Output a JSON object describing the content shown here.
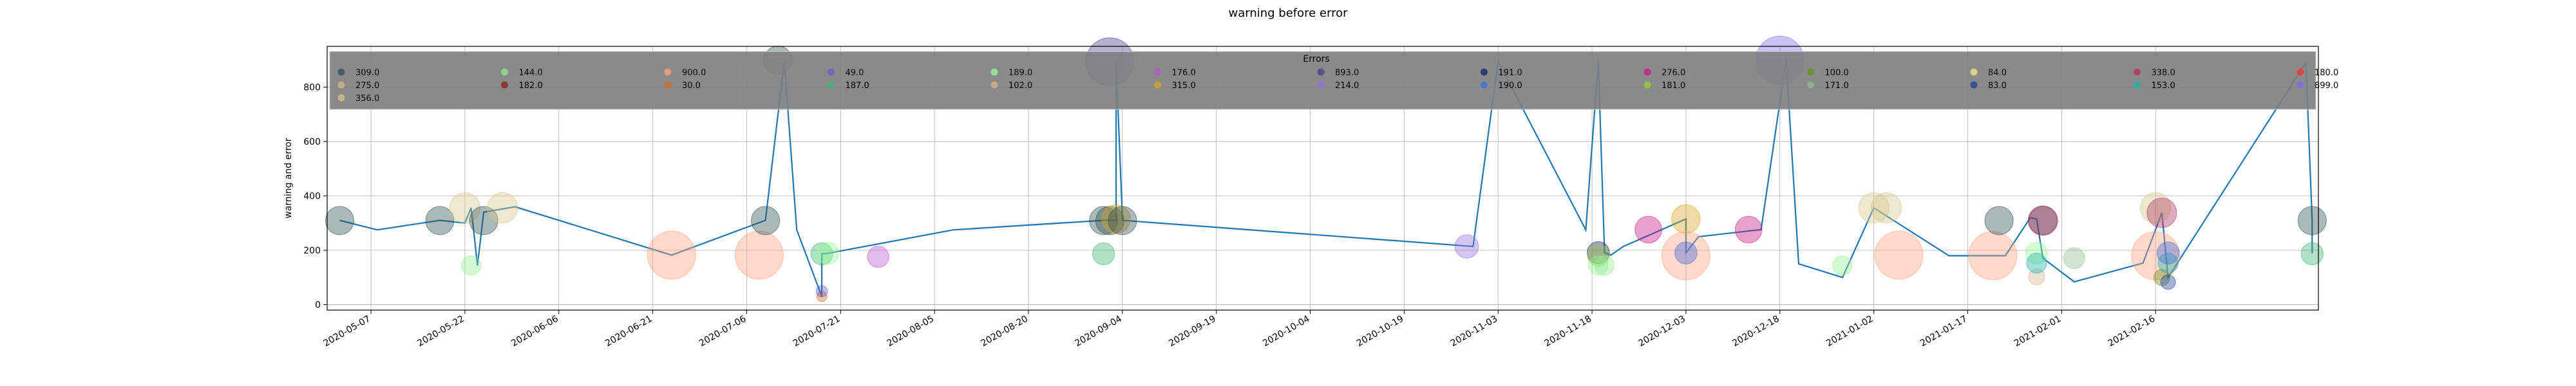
{
  "chart_data": {
    "type": "scatter",
    "title": "warning before error",
    "xlabel": "",
    "ylabel": "warning and error",
    "ylim": [
      -20,
      950
    ],
    "xlim": [
      "2020-04-30",
      "2021-03-14"
    ],
    "grid": true,
    "yticks": [
      0,
      200,
      400,
      600,
      800
    ],
    "xticks": [
      "2020-05-07",
      "2020-05-22",
      "2020-06-06",
      "2020-06-21",
      "2020-07-06",
      "2020-07-21",
      "2020-08-05",
      "2020-08-20",
      "2020-09-04",
      "2020-09-19",
      "2020-10-04",
      "2020-10-19",
      "2020-11-03",
      "2020-11-18",
      "2020-12-03",
      "2020-12-18",
      "2021-01-02",
      "2021-01-17",
      "2021-02-01",
      "2021-02-16"
    ],
    "legend": {
      "title": "Errors",
      "placement": "top",
      "entries": [
        {
          "label": "309.0",
          "color": "#2f4f4f"
        },
        {
          "label": "275.0",
          "color": "#cdb88a"
        },
        {
          "label": "356.0",
          "color": "#d4c58a"
        },
        {
          "label": "144.0",
          "color": "#90ee90"
        },
        {
          "label": "182.0",
          "color": "#8b1a1a"
        },
        {
          "label": "900.0",
          "color": "#ffa07a"
        },
        {
          "label": "30.0",
          "color": "#d2691e"
        },
        {
          "label": "49.0",
          "color": "#6a5acd"
        },
        {
          "label": "187.0",
          "color": "#3cb371"
        },
        {
          "label": "189.0",
          "color": "#98fb98"
        },
        {
          "label": "102.0",
          "color": "#d2b48c"
        },
        {
          "label": "176.0",
          "color": "#ba55d3"
        },
        {
          "label": "315.0",
          "color": "#daa520"
        },
        {
          "label": "893.0",
          "color": "#483d8b"
        },
        {
          "label": "214.0",
          "color": "#9370db"
        },
        {
          "label": "191.0",
          "color": "#191970"
        },
        {
          "label": "190.0",
          "color": "#4169e1"
        },
        {
          "label": "276.0",
          "color": "#c71585"
        },
        {
          "label": "181.0",
          "color": "#9acd32"
        },
        {
          "label": "100.0",
          "color": "#6b8e23"
        },
        {
          "label": "171.0",
          "color": "#8fbc8f"
        },
        {
          "label": "84.0",
          "color": "#f0e68c"
        },
        {
          "label": "83.0",
          "color": "#1e3c96"
        },
        {
          "label": "338.0",
          "color": "#b03060"
        },
        {
          "label": "153.0",
          "color": "#20b2aa"
        },
        {
          "label": "180.0",
          "color": "#ff3030"
        },
        {
          "label": "899.0",
          "color": "#7b68ee"
        }
      ]
    },
    "line": {
      "color": "#1f77b4",
      "x": [
        "2020-05-02",
        "2020-05-08",
        "2020-05-18",
        "2020-05-22",
        "2020-05-23",
        "2020-05-24",
        "2020-05-25",
        "2020-05-30",
        "2020-06-24",
        "2020-07-09",
        "2020-07-12",
        "2020-07-14",
        "2020-07-18",
        "2020-07-18",
        "2020-07-19",
        "2020-08-08",
        "2020-09-01",
        "2020-09-03",
        "2020-09-03",
        "2020-09-04",
        "2020-09-04",
        "2020-10-30",
        "2020-11-03",
        "2020-11-17",
        "2020-11-19",
        "2020-11-20",
        "2020-11-21",
        "2020-11-23",
        "2020-12-03",
        "2020-12-03",
        "2020-12-05",
        "2020-12-15",
        "2020-12-19",
        "2020-12-21",
        "2020-12-28",
        "2021-01-02",
        "2021-01-14",
        "2021-01-23",
        "2021-01-27",
        "2021-01-28",
        "2021-01-29",
        "2021-02-03",
        "2021-02-14",
        "2021-02-17",
        "2021-02-18",
        "2021-03-12",
        "2021-03-13",
        "2021-03-13"
      ],
      "y": [
        310,
        275,
        310,
        300,
        356,
        144,
        340,
        360,
        182,
        310,
        895,
        275,
        30,
        187,
        189,
        275,
        310,
        310,
        893,
        315,
        310,
        214,
        895,
        275,
        895,
        191,
        182,
        214,
        315,
        190,
        250,
        276,
        900,
        150,
        100,
        356,
        180,
        180,
        320,
        315,
        171,
        84,
        153,
        338,
        100,
        890,
        310,
        189
      ]
    },
    "points": [
      {
        "x": "2020-05-02",
        "y": 309,
        "error": 309.0
      },
      {
        "x": "2020-05-18",
        "y": 309,
        "error": 309.0
      },
      {
        "x": "2020-05-22",
        "y": 356,
        "error": 356.0
      },
      {
        "x": "2020-05-23",
        "y": 144,
        "error": 144.0
      },
      {
        "x": "2020-05-25",
        "y": 309,
        "error": 309.0
      },
      {
        "x": "2020-05-28",
        "y": 356,
        "error": 356.0
      },
      {
        "x": "2020-06-24",
        "y": 182,
        "error": 900.0
      },
      {
        "x": "2020-07-08",
        "y": 182,
        "error": 900.0
      },
      {
        "x": "2020-07-09",
        "y": 309,
        "error": 309.0
      },
      {
        "x": "2020-07-11",
        "y": 899,
        "error": 309.0
      },
      {
        "x": "2020-07-18",
        "y": 30,
        "error": 30.0
      },
      {
        "x": "2020-07-18",
        "y": 49,
        "error": 49.0
      },
      {
        "x": "2020-07-18",
        "y": 187,
        "error": 187.0
      },
      {
        "x": "2020-07-19",
        "y": 189,
        "error": 189.0
      },
      {
        "x": "2020-07-27",
        "y": 176,
        "error": 176.0
      },
      {
        "x": "2020-09-01",
        "y": 309,
        "error": 309.0
      },
      {
        "x": "2020-09-01",
        "y": 187,
        "error": 187.0
      },
      {
        "x": "2020-09-02",
        "y": 893,
        "error": 893.0
      },
      {
        "x": "2020-09-02",
        "y": 309,
        "error": 309.0
      },
      {
        "x": "2020-09-03",
        "y": 315,
        "error": 315.0
      },
      {
        "x": "2020-09-04",
        "y": 309,
        "error": 309.0
      },
      {
        "x": "2020-10-29",
        "y": 214,
        "error": 214.0
      },
      {
        "x": "2020-11-19",
        "y": 191,
        "error": 191.0
      },
      {
        "x": "2020-11-19",
        "y": 181,
        "error": 181.0
      },
      {
        "x": "2020-11-19",
        "y": 144,
        "error": 144.0
      },
      {
        "x": "2020-11-20",
        "y": 144,
        "error": 144.0
      },
      {
        "x": "2020-11-27",
        "y": 276,
        "error": 276.0
      },
      {
        "x": "2020-12-03",
        "y": 315,
        "error": 315.0
      },
      {
        "x": "2020-12-03",
        "y": 180,
        "error": 900.0
      },
      {
        "x": "2020-12-03",
        "y": 190,
        "error": 190.0
      },
      {
        "x": "2020-12-13",
        "y": 276,
        "error": 276.0
      },
      {
        "x": "2020-12-18",
        "y": 899,
        "error": 899.0
      },
      {
        "x": "2020-12-28",
        "y": 144,
        "error": 144.0
      },
      {
        "x": "2021-01-02",
        "y": 356,
        "error": 356.0
      },
      {
        "x": "2021-01-04",
        "y": 356,
        "error": 356.0
      },
      {
        "x": "2021-01-06",
        "y": 182,
        "error": 900.0
      },
      {
        "x": "2021-01-21",
        "y": 180,
        "error": 900.0
      },
      {
        "x": "2021-01-22",
        "y": 309,
        "error": 309.0
      },
      {
        "x": "2021-01-28",
        "y": 102,
        "error": 102.0
      },
      {
        "x": "2021-01-28",
        "y": 189,
        "error": 189.0
      },
      {
        "x": "2021-01-28",
        "y": 153,
        "error": 153.0
      },
      {
        "x": "2021-01-29",
        "y": 309,
        "error": 309.0
      },
      {
        "x": "2021-01-29",
        "y": 309,
        "error": 338.0
      },
      {
        "x": "2021-02-03",
        "y": 171,
        "error": 171.0
      },
      {
        "x": "2021-02-16",
        "y": 180,
        "error": 900.0
      },
      {
        "x": "2021-02-16",
        "y": 356,
        "error": 356.0
      },
      {
        "x": "2021-02-17",
        "y": 338,
        "error": 338.0
      },
      {
        "x": "2021-02-17",
        "y": 100,
        "error": 100.0
      },
      {
        "x": "2021-02-18",
        "y": 83,
        "error": 83.0
      },
      {
        "x": "2021-02-18",
        "y": 153,
        "error": 153.0
      },
      {
        "x": "2021-02-18",
        "y": 190,
        "error": 190.0
      },
      {
        "x": "2021-03-13",
        "y": 309,
        "error": 309.0
      },
      {
        "x": "2021-03-13",
        "y": 187,
        "error": 187.0
      }
    ]
  }
}
